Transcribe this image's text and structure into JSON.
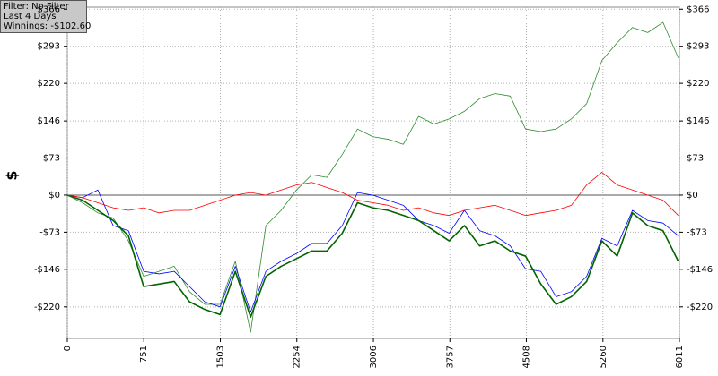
{
  "filter_box": {
    "lines": [
      "Filter: No Filter",
      "Last 4 Days",
      "Winnings: -$102.60"
    ]
  },
  "chart_data": {
    "type": "line",
    "ylabel": "$",
    "x": [
      0,
      150,
      300,
      450,
      600,
      750,
      900,
      1050,
      1200,
      1350,
      1500,
      1650,
      1800,
      1950,
      2100,
      2250,
      2400,
      2550,
      2700,
      2850,
      3000,
      3150,
      3300,
      3450,
      3600,
      3750,
      3900,
      4050,
      4200,
      4350,
      4500,
      4650,
      4800,
      4950,
      5100,
      5250,
      5400,
      5550,
      5700,
      5850,
      6000
    ],
    "series": [
      {
        "color": "#2e8b2e",
        "width": 0.8,
        "values": [
          0,
          -15,
          -35,
          -45,
          -90,
          -160,
          -150,
          -140,
          -190,
          -215,
          -215,
          -130,
          -270,
          -60,
          -30,
          10,
          40,
          35,
          80,
          130,
          115,
          110,
          100,
          155,
          140,
          150,
          165,
          190,
          200,
          195,
          130,
          125,
          130,
          150,
          180,
          265,
          300,
          330,
          320,
          340,
          270
        ]
      },
      {
        "color": "#0000ff",
        "width": 0.8,
        "values": [
          0,
          -5,
          10,
          -60,
          -70,
          -150,
          -155,
          -150,
          -180,
          -210,
          -220,
          -140,
          -230,
          -150,
          -130,
          -115,
          -95,
          -95,
          -60,
          5,
          0,
          -10,
          -20,
          -50,
          -60,
          -75,
          -30,
          -70,
          -80,
          -100,
          -145,
          -150,
          -200,
          -190,
          -160,
          -85,
          -100,
          -30,
          -50,
          -55,
          -80
        ]
      },
      {
        "color": "#006400",
        "width": 1.6,
        "values": [
          0,
          -10,
          -30,
          -50,
          -80,
          -180,
          -175,
          -170,
          -210,
          -225,
          -235,
          -150,
          -240,
          -160,
          -140,
          -125,
          -110,
          -110,
          -75,
          -15,
          -25,
          -30,
          -40,
          -50,
          -70,
          -90,
          -60,
          -100,
          -90,
          -110,
          -120,
          -175,
          -215,
          -200,
          -170,
          -90,
          -120,
          -35,
          -60,
          -70,
          -130
        ]
      },
      {
        "color": "#ff0000",
        "width": 0.8,
        "values": [
          0,
          -5,
          -15,
          -25,
          -30,
          -25,
          -35,
          -30,
          -30,
          -20,
          -10,
          0,
          5,
          0,
          10,
          20,
          25,
          15,
          5,
          -10,
          -15,
          -20,
          -30,
          -25,
          -35,
          -40,
          -30,
          -25,
          -20,
          -30,
          -40,
          -35,
          -30,
          -20,
          20,
          45,
          20,
          10,
          0,
          -10,
          -40
        ]
      }
    ],
    "xlim": [
      0,
      6011
    ],
    "xticks": [
      0,
      751,
      1503,
      2254,
      3006,
      3757,
      4508,
      5260,
      6011
    ],
    "ylim": [
      -282,
      370
    ],
    "yticks": [
      {
        "value": 366,
        "label": "$366"
      },
      {
        "value": 293,
        "label": "$293"
      },
      {
        "value": 220,
        "label": "$220"
      },
      {
        "value": 146,
        "label": "$146"
      },
      {
        "value": 73,
        "label": "$73"
      },
      {
        "value": 0,
        "label": "$0"
      },
      {
        "value": -73,
        "label": "-$73"
      },
      {
        "value": -146,
        "label": "-$146"
      },
      {
        "value": -220,
        "label": "-$220"
      }
    ],
    "grid": true
  }
}
